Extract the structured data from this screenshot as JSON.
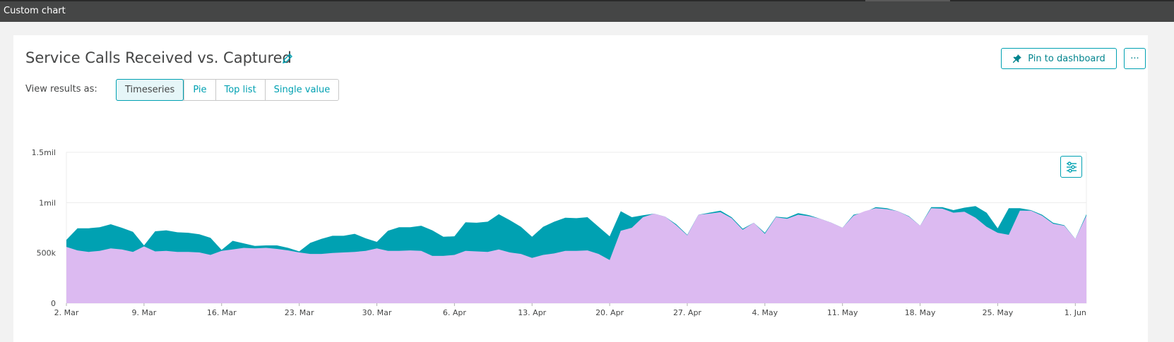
{
  "window": {
    "title": "Custom chart"
  },
  "header": {
    "title": "Service Calls Received vs. Captured",
    "pin_label": "Pin to dashboard",
    "more_label": "···"
  },
  "view": {
    "label": "View results as:",
    "options": [
      "Timeseries",
      "Pie",
      "Top list",
      "Single value"
    ],
    "selected": "Timeseries"
  },
  "colors": {
    "received": "#00a1b2",
    "captured": "#dcbaf1",
    "accent": "#00a1b2"
  },
  "chart_data": {
    "type": "area",
    "x_start": "2. Mar",
    "x_ticks": [
      "2. Mar",
      "9. Mar",
      "16. Mar",
      "23. Mar",
      "30. Mar",
      "6. Apr",
      "13. Apr",
      "20. Apr",
      "27. Apr",
      "4. May",
      "11. May",
      "18. May",
      "25. May",
      "1. Jun"
    ],
    "y_ticks": [
      0,
      500000,
      1000000,
      1500000
    ],
    "y_tick_labels": [
      "0",
      "500k",
      "1mil",
      "1.5mil"
    ],
    "ylim": [
      0,
      1500000
    ],
    "series": [
      {
        "key": "received",
        "values": [
          630000,
          745000,
          745000,
          755000,
          785000,
          750000,
          710000,
          575000,
          715000,
          725000,
          705000,
          700000,
          685000,
          650000,
          530000,
          620000,
          595000,
          570000,
          575000,
          575000,
          550000,
          515000,
          600000,
          640000,
          670000,
          670000,
          690000,
          645000,
          610000,
          720000,
          755000,
          755000,
          770000,
          725000,
          660000,
          665000,
          805000,
          800000,
          810000,
          885000,
          825000,
          760000,
          660000,
          760000,
          810000,
          850000,
          845000,
          855000,
          760000,
          665000,
          915000,
          855000,
          875000,
          890000,
          860000,
          785000,
          680000,
          880000,
          900000,
          920000,
          855000,
          740000,
          800000,
          700000,
          860000,
          850000,
          895000,
          875000,
          840000,
          800000,
          750000,
          880000,
          905000,
          955000,
          945000,
          915000,
          865000,
          770000,
          955000,
          955000,
          925000,
          950000,
          965000,
          900000,
          745000,
          945000,
          945000,
          925000,
          880000,
          800000,
          775000,
          640000,
          885000
        ]
      },
      {
        "key": "captured",
        "values": [
          560000,
          525000,
          510000,
          520000,
          545000,
          535000,
          510000,
          565000,
          515000,
          520000,
          510000,
          510000,
          505000,
          480000,
          520000,
          535000,
          550000,
          545000,
          550000,
          540000,
          525000,
          505000,
          490000,
          490000,
          500000,
          505000,
          510000,
          520000,
          545000,
          520000,
          520000,
          525000,
          520000,
          470000,
          470000,
          480000,
          520000,
          515000,
          510000,
          535000,
          505000,
          490000,
          450000,
          480000,
          495000,
          520000,
          520000,
          525000,
          490000,
          430000,
          720000,
          750000,
          855000,
          890000,
          860000,
          775000,
          675000,
          880000,
          890000,
          905000,
          845000,
          730000,
          800000,
          690000,
          855000,
          840000,
          880000,
          865000,
          840000,
          800000,
          750000,
          870000,
          915000,
          945000,
          935000,
          915000,
          860000,
          770000,
          945000,
          940000,
          900000,
          910000,
          850000,
          760000,
          700000,
          680000,
          920000,
          920000,
          870000,
          790000,
          770000,
          640000,
          870000
        ]
      }
    ]
  }
}
